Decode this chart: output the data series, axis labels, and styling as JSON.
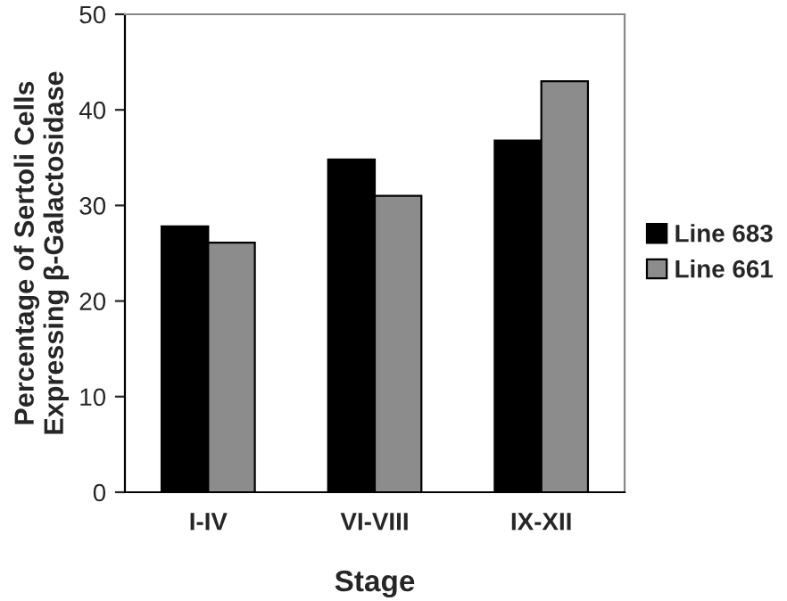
{
  "chart_data": {
    "type": "bar",
    "xlabel": "Stage",
    "ylabel": "Percentage of Sertoli Cells\nExpressing β-Galactosidase",
    "categories": [
      "I-IV",
      "VI-VIII",
      "IX-XII"
    ],
    "series": [
      {
        "name": "Line 683",
        "color": "#000000",
        "values": [
          27.8,
          34.8,
          36.8
        ]
      },
      {
        "name": "Line 661",
        "color": "#8c8c8c",
        "values": [
          26.1,
          31.0,
          43.0
        ]
      }
    ],
    "ylim": [
      0,
      50
    ],
    "yticks": [
      0,
      10,
      20,
      30,
      40,
      50
    ],
    "grid": false,
    "legend": "right"
  }
}
